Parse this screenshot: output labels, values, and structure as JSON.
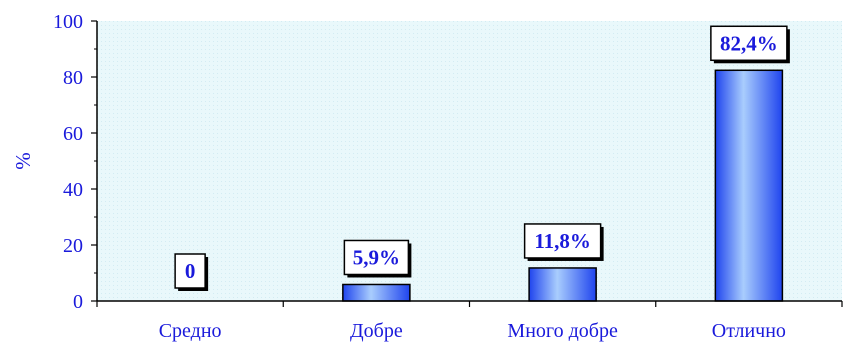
{
  "chart_data": {
    "type": "bar",
    "categories": [
      "Средно",
      "Добре",
      "Много добре",
      "Отлично"
    ],
    "values": [
      0,
      5.9,
      11.8,
      82.4
    ],
    "data_labels": [
      "0",
      "5,9%",
      "11,8%",
      "82,4%"
    ],
    "title": "",
    "xlabel": "",
    "ylabel": "%",
    "ylim": [
      0,
      100
    ],
    "yticks": [
      0,
      20,
      40,
      60,
      80,
      100
    ],
    "grid": false,
    "legend": "none"
  },
  "colors": {
    "plot_background": "#e9f8fb",
    "bar_light": "#a9cdfd",
    "bar_dark": "#1f44ee",
    "bar_outline": "#000000",
    "text_accent": "#1a1adb",
    "axis": "#000000",
    "label_box": "#ffffff"
  }
}
